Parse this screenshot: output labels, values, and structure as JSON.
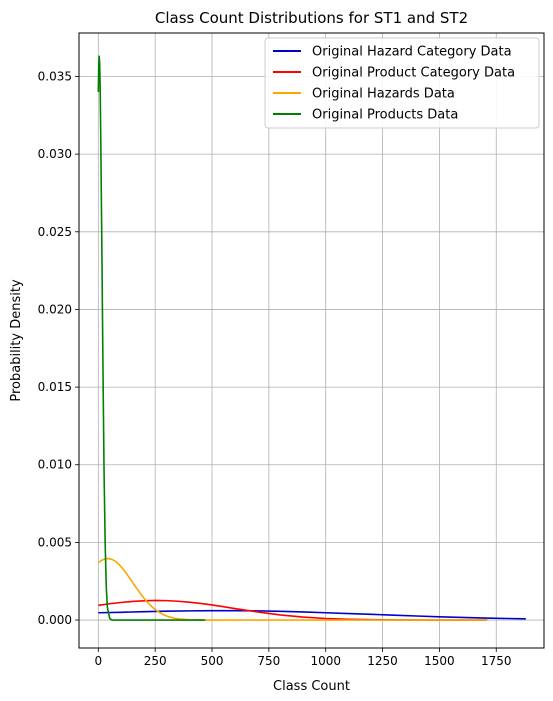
{
  "chart_data": {
    "type": "line",
    "title": "Class Count Distributions for ST1 and ST2",
    "xlabel": "Class Count",
    "ylabel": "Probability Density",
    "xlim": [
      -85,
      1960
    ],
    "ylim": [
      -0.0018,
      0.0378
    ],
    "xticks": [
      0,
      250,
      500,
      750,
      1000,
      1250,
      1500,
      1750
    ],
    "xtick_labels": [
      "0",
      "250",
      "500",
      "750",
      "1000",
      "1250",
      "1500",
      "1750"
    ],
    "yticks": [
      0.0,
      0.005,
      0.01,
      0.015,
      0.02,
      0.025,
      0.03,
      0.035
    ],
    "ytick_labels": [
      "0.000",
      "0.005",
      "0.010",
      "0.015",
      "0.020",
      "0.025",
      "0.030",
      "0.035"
    ],
    "grid": true,
    "legend_position": "upper right",
    "series": [
      {
        "name": "Original Hazard Category Data",
        "color": "#0000cd",
        "x": [
          0,
          100,
          200,
          300,
          400,
          500,
          600,
          700,
          800,
          900,
          1000,
          1100,
          1200,
          1300,
          1400,
          1500,
          1600,
          1700,
          1800,
          1880
        ],
        "y": [
          0.00047,
          0.0005,
          0.00054,
          0.00057,
          0.00059,
          0.0006,
          0.0006,
          0.00059,
          0.00056,
          0.00052,
          0.00047,
          0.00042,
          0.00037,
          0.00031,
          0.00026,
          0.00021,
          0.00017,
          0.00013,
          0.0001,
          8e-05
        ]
      },
      {
        "name": "Original Product Category Data",
        "color": "#ff0000",
        "x": [
          0,
          50,
          100,
          150,
          200,
          250,
          300,
          350,
          400,
          450,
          500,
          550,
          600,
          700,
          800,
          900,
          1000,
          1100,
          1200,
          1300,
          1400,
          1500,
          1600,
          1710
        ],
        "y": [
          0.00095,
          0.00105,
          0.00113,
          0.0012,
          0.00124,
          0.00126,
          0.00125,
          0.00121,
          0.00115,
          0.00107,
          0.00097,
          0.00086,
          0.00074,
          0.00052,
          0.00033,
          0.00019,
          0.0001,
          5e-05,
          2e-05,
          1e-05,
          0.0,
          0.0,
          0.0,
          0.0
        ]
      },
      {
        "name": "Original Hazards Data",
        "color": "#ffa500",
        "x": [
          0,
          15,
          30,
          45,
          60,
          75,
          90,
          105,
          120,
          135,
          150,
          165,
          180,
          200,
          220,
          240,
          260,
          280,
          300,
          330,
          360,
          400,
          450,
          500,
          600,
          800,
          1000,
          1200,
          1400,
          1600,
          1710
        ],
        "y": [
          0.0037,
          0.00385,
          0.00394,
          0.00396,
          0.0039,
          0.00378,
          0.00359,
          0.00335,
          0.00307,
          0.00276,
          0.00244,
          0.00212,
          0.00181,
          0.00142,
          0.00108,
          0.0008,
          0.00057,
          0.00039,
          0.00026,
          0.00013,
          6e-05,
          2e-05,
          0.0,
          0.0,
          0.0,
          0.0,
          0.0,
          0.0,
          0.0,
          0.0,
          0.0
        ]
      },
      {
        "name": "Original Products Data",
        "color": "#008000",
        "x": [
          0,
          2,
          4,
          6,
          8,
          10,
          15,
          20,
          25,
          30,
          35,
          40,
          50,
          60,
          80,
          100,
          150,
          200,
          300,
          400,
          470
        ],
        "y": [
          0.034,
          0.0358,
          0.0363,
          0.0358,
          0.0343,
          0.032,
          0.0248,
          0.0168,
          0.0098,
          0.005,
          0.0021,
          0.0008,
          0.0001,
          0.0,
          0.0,
          0.0,
          0.0,
          0.0,
          0.0,
          0.0,
          0.0
        ]
      }
    ]
  }
}
